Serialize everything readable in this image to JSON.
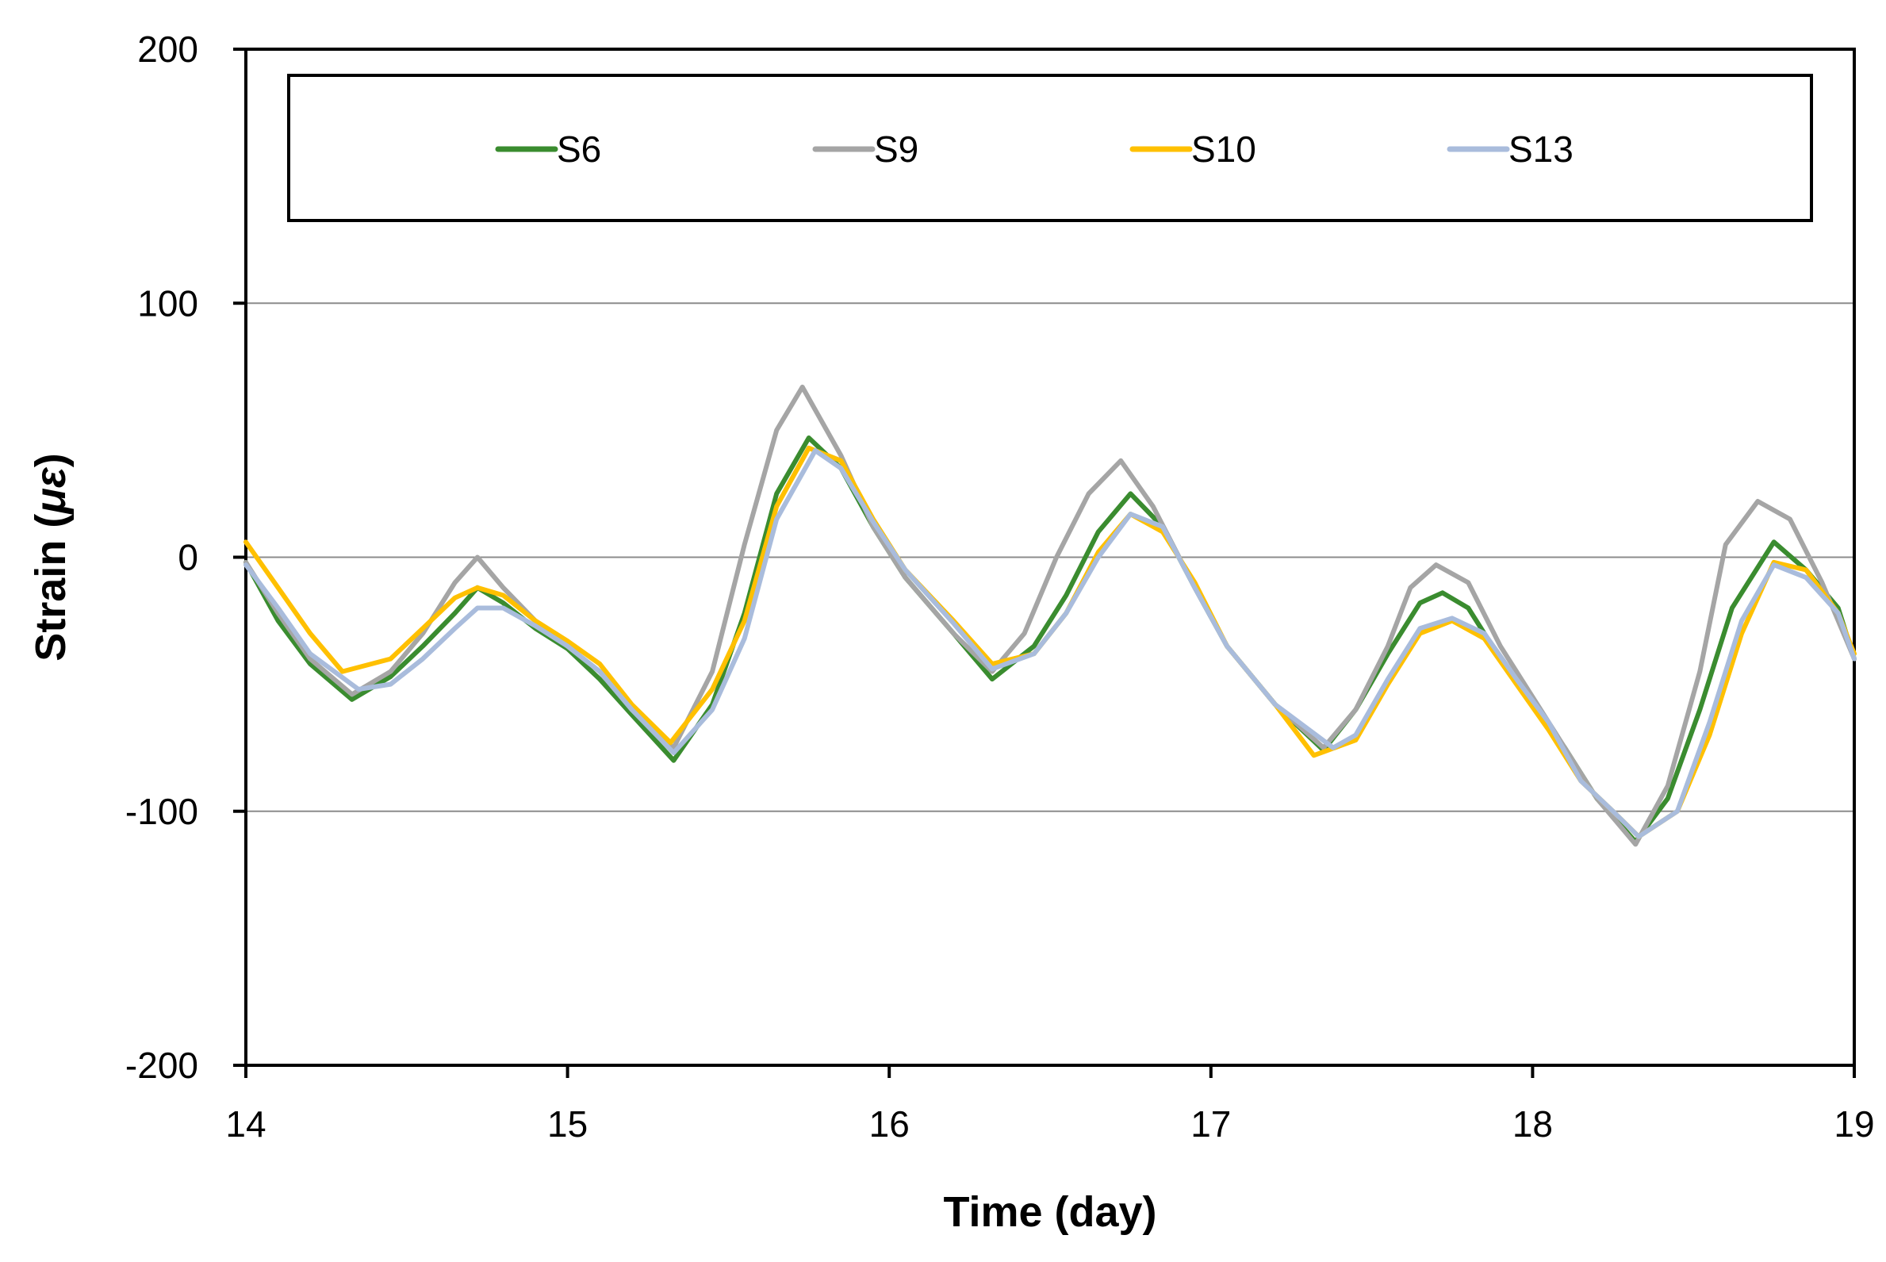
{
  "chart_data": {
    "type": "line",
    "title": "",
    "xlabel": "Time (day)",
    "ylabel_text": "Strain (",
    "ylabel_unit": "με",
    "ylabel_close": ")",
    "xlim": [
      14,
      19
    ],
    "ylim": [
      -200,
      200
    ],
    "x_ticks": [
      14,
      15,
      16,
      17,
      18,
      19
    ],
    "x_tick_labels": [
      "14",
      "15",
      "16",
      "17",
      "18",
      "19"
    ],
    "y_ticks": [
      -200,
      -100,
      0,
      100,
      200
    ],
    "y_tick_labels": [
      "-200",
      "-100",
      "0",
      "100",
      "200"
    ],
    "gridlines_y": [
      -100,
      0,
      100
    ],
    "legend_position": "top",
    "series": [
      {
        "name": "S6",
        "color": "#3a8c2f",
        "x": [
          14.0,
          14.1,
          14.2,
          14.33,
          14.45,
          14.55,
          14.65,
          14.72,
          14.8,
          14.9,
          15.0,
          15.1,
          15.2,
          15.33,
          15.45,
          15.55,
          15.65,
          15.75,
          15.85,
          15.95,
          16.05,
          16.2,
          16.32,
          16.45,
          16.55,
          16.65,
          16.75,
          16.85,
          16.95,
          17.05,
          17.2,
          17.35,
          17.45,
          17.55,
          17.65,
          17.72,
          17.8,
          17.9,
          18.0,
          18.1,
          18.2,
          18.32,
          18.42,
          18.52,
          18.62,
          18.75,
          18.85,
          18.95,
          19.0
        ],
        "values": [
          -2,
          -25,
          -42,
          -56,
          -47,
          -35,
          -22,
          -12,
          -18,
          -28,
          -36,
          -48,
          -62,
          -80,
          -58,
          -22,
          25,
          47,
          35,
          12,
          -8,
          -30,
          -48,
          -35,
          -15,
          10,
          25,
          12,
          -12,
          -35,
          -58,
          -76,
          -60,
          -38,
          -18,
          -14,
          -20,
          -40,
          -58,
          -75,
          -95,
          -112,
          -95,
          -60,
          -20,
          6,
          -5,
          -20,
          -40
        ]
      },
      {
        "name": "S9",
        "color": "#a5a5a5",
        "x": [
          14.0,
          14.1,
          14.2,
          14.33,
          14.45,
          14.55,
          14.65,
          14.72,
          14.8,
          14.9,
          15.0,
          15.1,
          15.2,
          15.33,
          15.45,
          15.55,
          15.65,
          15.73,
          15.85,
          15.95,
          16.05,
          16.2,
          16.32,
          16.42,
          16.52,
          16.62,
          16.72,
          16.82,
          16.95,
          17.05,
          17.2,
          17.35,
          17.45,
          17.55,
          17.62,
          17.7,
          17.8,
          17.9,
          18.0,
          18.1,
          18.2,
          18.32,
          18.42,
          18.52,
          18.6,
          18.7,
          18.8,
          18.9,
          19.0
        ],
        "values": [
          -2,
          -22,
          -40,
          -54,
          -45,
          -30,
          -10,
          0,
          -12,
          -25,
          -35,
          -45,
          -60,
          -75,
          -45,
          5,
          50,
          67,
          40,
          12,
          -8,
          -30,
          -45,
          -30,
          0,
          25,
          38,
          20,
          -12,
          -35,
          -58,
          -75,
          -60,
          -35,
          -12,
          -3,
          -10,
          -35,
          -55,
          -75,
          -95,
          -113,
          -90,
          -45,
          5,
          22,
          15,
          -10,
          -40
        ]
      },
      {
        "name": "S10",
        "color": "#ffc000",
        "x": [
          14.0,
          14.1,
          14.2,
          14.3,
          14.45,
          14.55,
          14.65,
          14.72,
          14.8,
          14.9,
          15.0,
          15.1,
          15.2,
          15.32,
          15.45,
          15.55,
          15.65,
          15.75,
          15.85,
          15.95,
          16.05,
          16.2,
          16.32,
          16.45,
          16.55,
          16.65,
          16.75,
          16.85,
          16.95,
          17.05,
          17.2,
          17.32,
          17.45,
          17.55,
          17.65,
          17.75,
          17.85,
          17.95,
          18.05,
          18.15,
          18.25,
          18.33,
          18.45,
          18.55,
          18.65,
          18.75,
          18.85,
          18.95,
          19.0
        ],
        "values": [
          6,
          -12,
          -30,
          -45,
          -40,
          -28,
          -16,
          -12,
          -15,
          -25,
          -33,
          -42,
          -58,
          -73,
          -52,
          -25,
          20,
          43,
          38,
          15,
          -5,
          -25,
          -42,
          -38,
          -22,
          2,
          17,
          10,
          -10,
          -35,
          -58,
          -78,
          -72,
          -50,
          -30,
          -25,
          -32,
          -50,
          -68,
          -88,
          -100,
          -110,
          -100,
          -70,
          -30,
          -2,
          -5,
          -22,
          -38
        ]
      },
      {
        "name": "S13",
        "color": "#a9bcdc",
        "x": [
          14.0,
          14.1,
          14.2,
          14.35,
          14.45,
          14.55,
          14.65,
          14.72,
          14.8,
          14.9,
          15.0,
          15.1,
          15.2,
          15.33,
          15.45,
          15.55,
          15.65,
          15.77,
          15.85,
          15.95,
          16.05,
          16.2,
          16.32,
          16.45,
          16.55,
          16.65,
          16.75,
          16.85,
          16.95,
          17.05,
          17.2,
          17.38,
          17.45,
          17.55,
          17.65,
          17.75,
          17.85,
          17.95,
          18.05,
          18.15,
          18.25,
          18.33,
          18.45,
          18.55,
          18.65,
          18.75,
          18.85,
          18.95,
          19.0
        ],
        "values": [
          -3,
          -20,
          -38,
          -52,
          -50,
          -40,
          -28,
          -20,
          -20,
          -27,
          -35,
          -45,
          -60,
          -77,
          -60,
          -32,
          15,
          42,
          35,
          14,
          -5,
          -26,
          -44,
          -38,
          -22,
          0,
          17,
          12,
          -12,
          -35,
          -58,
          -75,
          -70,
          -48,
          -28,
          -24,
          -30,
          -48,
          -65,
          -88,
          -100,
          -110,
          -100,
          -65,
          -25,
          -3,
          -8,
          -22,
          -40
        ]
      }
    ]
  }
}
